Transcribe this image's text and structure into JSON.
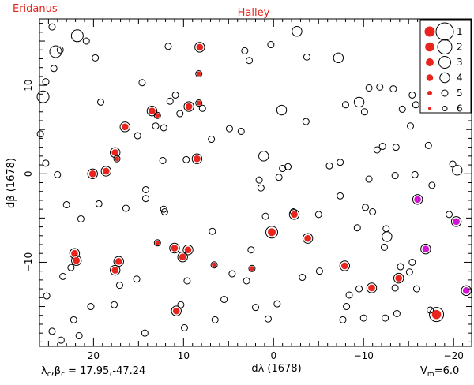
{
  "header": {
    "left_label": "Eridanus",
    "center_label": "Halley"
  },
  "footer": {
    "center_label": "λ",
    "center_label_sub": "c",
    "center_label_rest": ",β",
    "center_label_sub2": "c",
    "center_coords": "= 17.95,-47.24",
    "magnitude_prefix": "V",
    "magnitude_sub": "m",
    "magnitude_value": "=6.0"
  },
  "chart_data": {
    "type": "scatter",
    "xlabel": "dλ (1678)",
    "ylabel": "dβ (1678)",
    "xlim": [
      26,
      -22
    ],
    "ylim": [
      -19.5,
      17.5
    ],
    "x_ticks": [
      20,
      10,
      0,
      -10,
      -20
    ],
    "x_tick_labels": [
      "20",
      "10",
      "0",
      "−10",
      "−20"
    ],
    "y_ticks": [
      10,
      0,
      -10
    ],
    "y_tick_labels": [
      "10",
      "0",
      "−10"
    ],
    "legend": {
      "position": "top-right",
      "entries": [
        {
          "label": "1",
          "mag": 1
        },
        {
          "label": "2",
          "mag": 2
        },
        {
          "label": "3",
          "mag": 3
        },
        {
          "label": "4",
          "mag": 4
        },
        {
          "label": "5",
          "mag": 5
        },
        {
          "label": "6",
          "mag": 6
        }
      ]
    },
    "colors": {
      "red": "#e8241c",
      "magenta": "#d414d4",
      "axis": "#000000"
    },
    "red_stars": [
      {
        "x": 8.2,
        "y": 14.3,
        "mag": 4
      },
      {
        "x": 8.3,
        "y": 11.3,
        "mag": 5
      },
      {
        "x": 8.3,
        "y": 8.0,
        "mag": 5
      },
      {
        "x": 9.4,
        "y": 7.6,
        "mag": 4
      },
      {
        "x": 13.5,
        "y": 7.1,
        "mag": 4
      },
      {
        "x": 12.9,
        "y": 6.6,
        "mag": 5
      },
      {
        "x": 16.5,
        "y": 5.3,
        "mag": 4
      },
      {
        "x": 17.6,
        "y": 2.4,
        "mag": 4
      },
      {
        "x": 17.4,
        "y": 1.7,
        "mag": 5
      },
      {
        "x": 8.5,
        "y": 1.7,
        "mag": 4
      },
      {
        "x": 20.1,
        "y": 0.0,
        "mag": 4
      },
      {
        "x": 18.6,
        "y": 0.3,
        "mag": 4
      },
      {
        "x": 0.2,
        "y": -6.6,
        "mag": 3
      },
      {
        "x": -2.3,
        "y": -4.6,
        "mag": 4
      },
      {
        "x": -3.8,
        "y": -7.3,
        "mag": 4
      },
      {
        "x": 12.9,
        "y": -7.8,
        "mag": 5
      },
      {
        "x": 11.0,
        "y": -8.4,
        "mag": 4
      },
      {
        "x": 9.5,
        "y": -8.6,
        "mag": 4
      },
      {
        "x": 10.1,
        "y": -9.4,
        "mag": 4
      },
      {
        "x": 22.1,
        "y": -9.0,
        "mag": 4
      },
      {
        "x": 21.9,
        "y": -9.8,
        "mag": 4
      },
      {
        "x": 17.2,
        "y": -9.9,
        "mag": 4
      },
      {
        "x": 17.6,
        "y": -10.9,
        "mag": 4
      },
      {
        "x": 6.6,
        "y": -10.3,
        "mag": 5
      },
      {
        "x": 2.4,
        "y": -10.7,
        "mag": 5
      },
      {
        "x": -7.9,
        "y": -10.4,
        "mag": 4
      },
      {
        "x": -13.9,
        "y": -11.8,
        "mag": 4
      },
      {
        "x": -10.9,
        "y": -12.9,
        "mag": 4
      },
      {
        "x": 10.8,
        "y": -15.5,
        "mag": 4
      },
      {
        "x": -18.1,
        "y": -15.9,
        "mag": 2
      }
    ],
    "magenta_stars": [
      {
        "x": -16.0,
        "y": -2.9,
        "mag": 4
      },
      {
        "x": -20.3,
        "y": -5.4,
        "mag": 4
      },
      {
        "x": -16.9,
        "y": -8.5,
        "mag": 4
      },
      {
        "x": -21.4,
        "y": -13.2,
        "mag": 4
      }
    ],
    "open_stars": [
      {
        "x": 25.6,
        "y": 8.7,
        "mag": 3
      },
      {
        "x": 24.2,
        "y": 13.8,
        "mag": 3
      },
      {
        "x": 21.8,
        "y": 15.6,
        "mag": 3
      },
      {
        "x": -2.6,
        "y": 16.1,
        "mag": 4
      },
      {
        "x": -9.5,
        "y": 8.1,
        "mag": 4
      },
      {
        "x": -0.9,
        "y": 7.2,
        "mag": 4
      },
      {
        "x": 1.1,
        "y": 2.0,
        "mag": 4
      },
      {
        "x": -8.0,
        "y": 7.8,
        "mag": 5
      },
      {
        "x": 25.9,
        "y": 4.5,
        "mag": 5
      },
      {
        "x": 25.3,
        "y": 10.4,
        "mag": 5
      },
      {
        "x": 24.4,
        "y": 11.9,
        "mag": 5
      },
      {
        "x": 24.6,
        "y": 16.6,
        "mag": 5
      },
      {
        "x": 25.3,
        "y": 1.2,
        "mag": 5
      },
      {
        "x": 24.0,
        "y": -0.1,
        "mag": 5
      },
      {
        "x": 23.7,
        "y": 14.0,
        "mag": 5
      },
      {
        "x": 20.8,
        "y": 15.0,
        "mag": 5
      },
      {
        "x": 19.8,
        "y": 13.1,
        "mag": 5
      },
      {
        "x": 19.2,
        "y": 8.1,
        "mag": 5
      },
      {
        "x": 14.6,
        "y": 10.3,
        "mag": 5
      },
      {
        "x": 13.1,
        "y": 5.4,
        "mag": 5
      },
      {
        "x": 12.2,
        "y": 5.2,
        "mag": 5
      },
      {
        "x": 10.4,
        "y": 6.8,
        "mag": 5
      },
      {
        "x": 9.7,
        "y": 1.6,
        "mag": 5
      },
      {
        "x": 6.9,
        "y": 3.9,
        "mag": 5
      },
      {
        "x": 4.9,
        "y": 5.1,
        "mag": 5
      },
      {
        "x": 3.6,
        "y": 4.8,
        "mag": 5
      },
      {
        "x": 2.7,
        "y": 12.8,
        "mag": 5
      },
      {
        "x": 3.2,
        "y": 13.9,
        "mag": 5
      },
      {
        "x": 0.3,
        "y": 14.6,
        "mag": 5
      },
      {
        "x": -1.0,
        "y": 0.6,
        "mag": 5
      },
      {
        "x": -1.6,
        "y": 0.8,
        "mag": 5
      },
      {
        "x": -3.7,
        "y": 13.2,
        "mag": 5
      },
      {
        "x": -7.2,
        "y": 13.1,
        "mag": 4
      },
      {
        "x": -3.6,
        "y": 5.9,
        "mag": 5
      },
      {
        "x": -10.1,
        "y": 7.0,
        "mag": 5
      },
      {
        "x": -10.6,
        "y": 9.7,
        "mag": 5
      },
      {
        "x": -11.8,
        "y": 9.8,
        "mag": 5
      },
      {
        "x": -13.3,
        "y": 9.6,
        "mag": 5
      },
      {
        "x": -14.3,
        "y": 7.3,
        "mag": 5
      },
      {
        "x": -15.4,
        "y": 8.9,
        "mag": 5
      },
      {
        "x": -15.8,
        "y": 7.8,
        "mag": 5
      },
      {
        "x": -15.2,
        "y": 5.4,
        "mag": 5
      },
      {
        "x": -11.5,
        "y": 2.7,
        "mag": 5
      },
      {
        "x": -12.1,
        "y": 3.1,
        "mag": 5
      },
      {
        "x": -13.6,
        "y": 3.0,
        "mag": 5
      },
      {
        "x": -17.2,
        "y": 3.2,
        "mag": 5
      },
      {
        "x": -19.9,
        "y": 1.1,
        "mag": 5
      },
      {
        "x": -20.4,
        "y": 0.4,
        "mag": 4
      },
      {
        "x": -15.7,
        "y": -0.1,
        "mag": 5
      },
      {
        "x": -13.5,
        "y": -0.2,
        "mag": 5
      },
      {
        "x": -10.6,
        "y": -0.6,
        "mag": 5
      },
      {
        "x": -7.4,
        "y": 1.3,
        "mag": 5
      },
      {
        "x": -6.2,
        "y": 0.9,
        "mag": 5
      },
      {
        "x": -7.4,
        "y": -2.5,
        "mag": 5
      },
      {
        "x": -5.0,
        "y": -4.6,
        "mag": 5
      },
      {
        "x": -2.2,
        "y": -4.3,
        "mag": 5
      },
      {
        "x": -10.2,
        "y": -3.8,
        "mag": 5
      },
      {
        "x": -9.3,
        "y": -6.1,
        "mag": 5
      },
      {
        "x": -11.0,
        "y": -4.3,
        "mag": 5
      },
      {
        "x": -12.5,
        "y": -6.2,
        "mag": 5
      },
      {
        "x": -12.6,
        "y": -7.1,
        "mag": 4
      },
      {
        "x": -12.3,
        "y": -8.3,
        "mag": 5
      },
      {
        "x": -14.1,
        "y": -10.5,
        "mag": 5
      },
      {
        "x": -15.4,
        "y": -10.0,
        "mag": 5
      },
      {
        "x": -15.1,
        "y": -11.1,
        "mag": 5
      },
      {
        "x": -13.5,
        "y": -12.9,
        "mag": 5
      },
      {
        "x": -15.9,
        "y": -13.0,
        "mag": 5
      },
      {
        "x": -17.4,
        "y": -15.4,
        "mag": 5
      },
      {
        "x": -19.5,
        "y": -4.6,
        "mag": 5
      },
      {
        "x": -17.6,
        "y": -1.3,
        "mag": 5
      },
      {
        "x": -5.1,
        "y": -11.0,
        "mag": 5
      },
      {
        "x": -9.5,
        "y": -13.0,
        "mag": 5
      },
      {
        "x": -8.4,
        "y": -13.7,
        "mag": 5
      },
      {
        "x": -8.1,
        "y": -15.0,
        "mag": 5
      },
      {
        "x": -7.7,
        "y": -16.5,
        "mag": 5
      },
      {
        "x": -10.0,
        "y": -16.3,
        "mag": 5
      },
      {
        "x": -12.4,
        "y": -16.3,
        "mag": 5
      },
      {
        "x": -13.7,
        "y": -15.8,
        "mag": 5
      },
      {
        "x": -3.2,
        "y": -11.7,
        "mag": 5
      },
      {
        "x": -0.4,
        "y": -14.7,
        "mag": 5
      },
      {
        "x": 0.6,
        "y": -16.4,
        "mag": 5
      },
      {
        "x": 3.0,
        "y": -12.1,
        "mag": 5
      },
      {
        "x": 2.0,
        "y": -15.1,
        "mag": 5
      },
      {
        "x": 4.6,
        "y": -11.3,
        "mag": 5
      },
      {
        "x": 5.5,
        "y": -14.2,
        "mag": 5
      },
      {
        "x": 6.5,
        "y": -16.5,
        "mag": 5
      },
      {
        "x": 9.6,
        "y": -12.1,
        "mag": 5
      },
      {
        "x": 10.3,
        "y": -14.8,
        "mag": 5
      },
      {
        "x": 9.9,
        "y": -17.4,
        "mag": 5
      },
      {
        "x": 14.3,
        "y": -18.0,
        "mag": 5
      },
      {
        "x": 15.2,
        "y": -11.9,
        "mag": 5
      },
      {
        "x": 17.7,
        "y": -14.8,
        "mag": 5
      },
      {
        "x": 20.3,
        "y": -15.0,
        "mag": 5
      },
      {
        "x": 22.2,
        "y": -16.5,
        "mag": 5
      },
      {
        "x": 23.4,
        "y": -11.6,
        "mag": 5
      },
      {
        "x": 25.2,
        "y": -13.8,
        "mag": 5
      },
      {
        "x": 24.6,
        "y": -17.8,
        "mag": 5
      },
      {
        "x": 21.6,
        "y": -18.3,
        "mag": 5
      },
      {
        "x": 19.4,
        "y": -3.4,
        "mag": 5
      },
      {
        "x": 21.4,
        "y": -5.1,
        "mag": 5
      },
      {
        "x": 23.0,
        "y": -3.5,
        "mag": 5
      },
      {
        "x": 16.4,
        "y": -3.9,
        "mag": 5
      },
      {
        "x": 14.2,
        "y": -2.8,
        "mag": 5
      },
      {
        "x": 14.2,
        "y": -1.8,
        "mag": 5
      },
      {
        "x": 12.2,
        "y": -4.0,
        "mag": 5
      },
      {
        "x": 12.3,
        "y": 1.5,
        "mag": 5
      },
      {
        "x": 17.1,
        "y": -12.6,
        "mag": 5
      },
      {
        "x": 22.5,
        "y": -10.6,
        "mag": 5
      },
      {
        "x": 11.7,
        "y": 14.4,
        "mag": 5
      },
      {
        "x": 10.9,
        "y": 8.9,
        "mag": 5
      },
      {
        "x": 7.9,
        "y": 7.4,
        "mag": 5
      },
      {
        "x": 1.6,
        "y": -0.7,
        "mag": 5
      },
      {
        "x": 1.4,
        "y": -1.6,
        "mag": 5
      },
      {
        "x": -0.6,
        "y": -0.4,
        "mag": 5
      },
      {
        "x": 0.9,
        "y": -4.8,
        "mag": 5
      },
      {
        "x": 6.8,
        "y": -6.5,
        "mag": 5
      },
      {
        "x": 2.5,
        "y": -8.6,
        "mag": 5
      },
      {
        "x": 12.1,
        "y": -4.3,
        "mag": 5
      },
      {
        "x": 11.5,
        "y": 8.2,
        "mag": 5
      },
      {
        "x": 23.6,
        "y": -18.8,
        "mag": 5
      },
      {
        "x": 15.1,
        "y": 4.3,
        "mag": 5
      }
    ]
  }
}
